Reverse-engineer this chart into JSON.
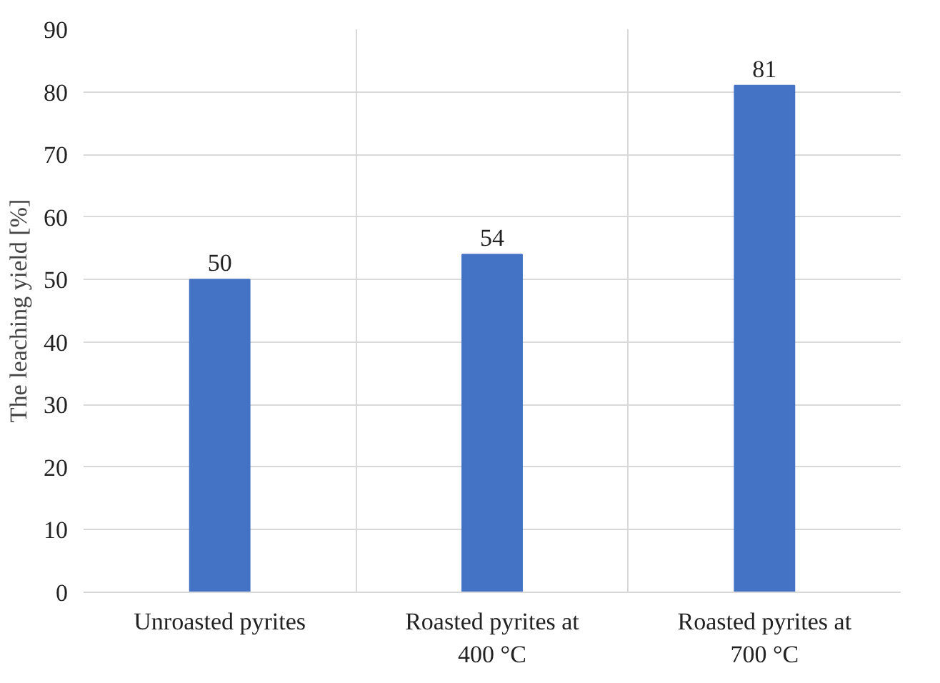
{
  "chart_data": {
    "type": "bar",
    "ylabel": "The leaching yield [%]",
    "categories": [
      "Unroasted pyrites",
      "Roasted pyrites at 400 °C",
      "Roasted pyrites at 700 °C"
    ],
    "values": [
      50,
      54,
      81
    ],
    "color": "#4472c4",
    "ylim": [
      0,
      90
    ],
    "yticks": [
      0,
      10,
      20,
      30,
      40,
      50,
      60,
      70,
      80,
      90
    ],
    "grid": true,
    "data_labels": true
  }
}
